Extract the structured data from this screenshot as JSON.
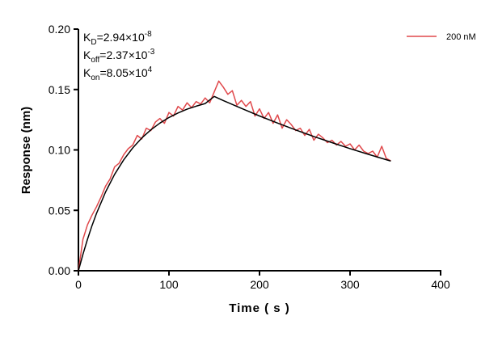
{
  "chart_data": {
    "type": "line",
    "xlabel": "Time ( s )",
    "ylabel": "Response (nm)",
    "xlim": [
      0,
      400
    ],
    "ylim": [
      0,
      0.2
    ],
    "xticks": [
      0,
      100,
      200,
      300,
      400
    ],
    "yticks": [
      "0.00",
      "0.05",
      "0.10",
      "0.15",
      "0.20"
    ],
    "grid": false,
    "legend_position": "top-right",
    "annotations": [
      {
        "base": "K",
        "sub": "D",
        "eq": "=2.94×10",
        "sup": "-8"
      },
      {
        "base": "K",
        "sub": "off",
        "eq": "=2.37×10",
        "sup": "-3"
      },
      {
        "base": "K",
        "sub": "on",
        "eq": "=8.05×10",
        "sup": "4"
      }
    ],
    "series": [
      {
        "name": "200 nM",
        "color": "#e0484b",
        "x": [
          0,
          5,
          10,
          15,
          20,
          25,
          30,
          35,
          40,
          45,
          50,
          55,
          60,
          65,
          70,
          75,
          80,
          85,
          90,
          95,
          100,
          105,
          110,
          115,
          120,
          125,
          130,
          135,
          140,
          145,
          150,
          155,
          160,
          165,
          170,
          175,
          180,
          185,
          190,
          195,
          200,
          205,
          210,
          215,
          220,
          225,
          230,
          235,
          240,
          245,
          250,
          255,
          260,
          265,
          270,
          275,
          280,
          285,
          290,
          295,
          300,
          305,
          310,
          315,
          320,
          325,
          330,
          335,
          340,
          345
        ],
        "y": [
          0.0,
          0.026,
          0.038,
          0.046,
          0.053,
          0.061,
          0.07,
          0.076,
          0.086,
          0.089,
          0.096,
          0.101,
          0.104,
          0.112,
          0.109,
          0.118,
          0.116,
          0.123,
          0.126,
          0.122,
          0.131,
          0.128,
          0.136,
          0.133,
          0.139,
          0.135,
          0.14,
          0.138,
          0.143,
          0.139,
          0.148,
          0.157,
          0.152,
          0.146,
          0.149,
          0.137,
          0.141,
          0.136,
          0.14,
          0.128,
          0.134,
          0.126,
          0.131,
          0.122,
          0.129,
          0.118,
          0.125,
          0.121,
          0.116,
          0.118,
          0.112,
          0.117,
          0.108,
          0.113,
          0.11,
          0.106,
          0.108,
          0.104,
          0.107,
          0.103,
          0.105,
          0.1,
          0.104,
          0.099,
          0.097,
          0.099,
          0.094,
          0.103,
          0.093,
          0.091
        ]
      },
      {
        "color": "#000000",
        "x": [
          0,
          5,
          10,
          15,
          20,
          30,
          40,
          50,
          60,
          70,
          80,
          90,
          100,
          110,
          120,
          130,
          140,
          150,
          160,
          180,
          200,
          220,
          240,
          260,
          280,
          300,
          320,
          340,
          345
        ],
        "y": [
          0.0,
          0.0136,
          0.026,
          0.0373,
          0.0475,
          0.0652,
          0.0798,
          0.0918,
          0.1017,
          0.1099,
          0.1166,
          0.1222,
          0.1268,
          0.1306,
          0.1337,
          0.1362,
          0.1384,
          0.1443,
          0.1409,
          0.1344,
          0.1281,
          0.1222,
          0.1165,
          0.1111,
          0.106,
          0.1011,
          0.0964,
          0.0919,
          0.0908
        ]
      }
    ]
  }
}
